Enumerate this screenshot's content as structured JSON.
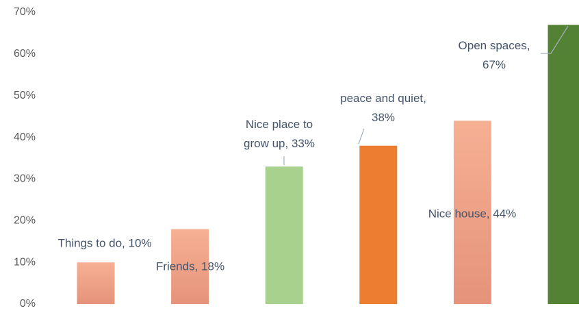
{
  "chart_data": {
    "type": "bar",
    "values": [
      10,
      18,
      33,
      38,
      44,
      67
    ],
    "value_labels": [
      "Things to do, 10%",
      "Friends, 18%",
      "Nice place to grow up, 33%",
      "peace and quiet, 38%",
      "Nice house, 44%",
      "Open spaces, 67%"
    ],
    "colors": [
      "#f2a283",
      "#f2a283",
      "#a9d18e",
      "#ed7d31",
      "#f2a283",
      "#548235"
    ],
    "ylim": [
      0,
      70
    ],
    "yticks": [
      {
        "value": 0,
        "label": "0%"
      },
      {
        "value": 10,
        "label": "10%"
      },
      {
        "value": 20,
        "label": "20%"
      },
      {
        "value": 30,
        "label": "30%"
      },
      {
        "value": 40,
        "label": "40%"
      },
      {
        "value": 50,
        "label": "50%"
      },
      {
        "value": 60,
        "label": "60%"
      },
      {
        "value": 70,
        "label": "70%"
      }
    ],
    "grid": false
  }
}
